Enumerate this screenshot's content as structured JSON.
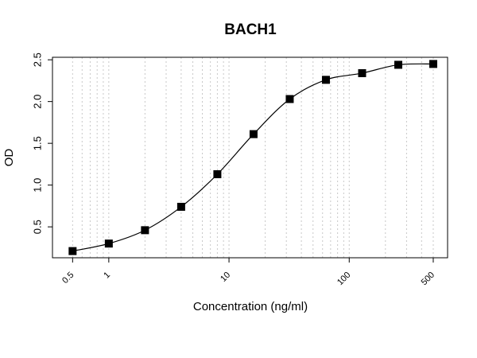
{
  "chart_data": {
    "type": "scatter",
    "title": "BACH1",
    "xlabel": "Concentration (ng/ml)",
    "ylabel": "OD",
    "xscale": "log",
    "x": [
      0.5,
      1,
      2,
      4,
      8,
      16,
      32,
      64,
      128,
      256,
      500
    ],
    "series": [
      {
        "color": "#000000",
        "values": [
          0.21,
          0.3,
          0.46,
          0.74,
          1.13,
          1.61,
          2.03,
          2.26,
          2.34,
          2.44,
          2.45
        ]
      }
    ],
    "xlim": [
      0.34,
      658
    ],
    "ylim": [
      0.13,
      2.53
    ],
    "xticks": [
      0.5,
      1,
      10,
      100,
      500
    ],
    "yticks": [
      0.5,
      {
        "value": 1,
        "label": "1.0"
      },
      1.5,
      {
        "value": 2,
        "label": "2.0"
      },
      2.5
    ],
    "xgrid": [
      0.5,
      0.6,
      0.7,
      0.8,
      0.9,
      1,
      2,
      3,
      4,
      5,
      6,
      7,
      8,
      9,
      10,
      20,
      30,
      40,
      50,
      60,
      70,
      80,
      90,
      100,
      200,
      300,
      400,
      500
    ],
    "grid": true,
    "curve": true
  }
}
